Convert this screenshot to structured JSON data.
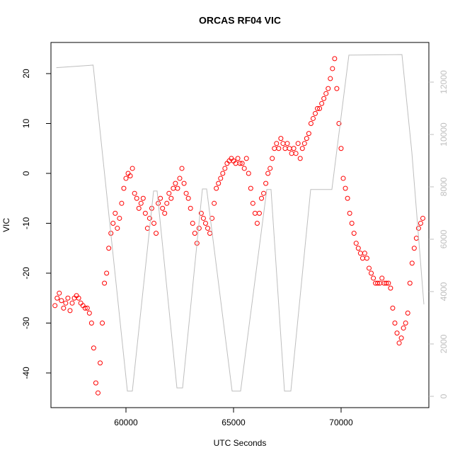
{
  "chart_data": {
    "type": "scatter",
    "title": "ORCAS RF04 VIC",
    "x_label": "UTC Seconds",
    "y_label": "VIC",
    "xlim": [
      56513,
      74080
    ],
    "ylim": [
      -46.95,
      26.24
    ],
    "y2lim": [
      -432,
      13514
    ],
    "xticks": [
      60000,
      65000,
      70000
    ],
    "yticks": [
      -40,
      -30,
      -20,
      -10,
      0,
      10,
      20
    ],
    "y2ticks": [
      0,
      2000,
      4000,
      6000,
      8000,
      10000,
      12000
    ],
    "y2_tick_color": "#bebebe",
    "series": [
      {
        "mark": "points",
        "color": "#ff0000",
        "x": [
          56700,
          56800,
          56900,
          57000,
          57100,
          57200,
          57300,
          57400,
          57500,
          57600,
          57700,
          57800,
          57900,
          58000,
          58100,
          58200,
          58300,
          58400,
          58500,
          58600,
          58700,
          58800,
          58900,
          59000,
          59100,
          59200,
          59300,
          59400,
          59500,
          59600,
          59700,
          59800,
          59900,
          60000,
          60100,
          60200,
          60300,
          60400,
          60500,
          60600,
          60700,
          60800,
          60900,
          61000,
          61100,
          61200,
          61300,
          61400,
          61500,
          61600,
          61700,
          61800,
          61900,
          62000,
          62100,
          62200,
          62300,
          62400,
          62500,
          62600,
          62700,
          62800,
          62900,
          63000,
          63100,
          63200,
          63300,
          63400,
          63500,
          63600,
          63700,
          63800,
          63900,
          64000,
          64100,
          64200,
          64300,
          64400,
          64500,
          64600,
          64700,
          64800,
          64900,
          65000,
          65100,
          65200,
          65300,
          65400,
          65500,
          65600,
          65700,
          65800,
          65900,
          66000,
          66100,
          66200,
          66300,
          66400,
          66500,
          66600,
          66700,
          66800,
          66900,
          67000,
          67100,
          67200,
          67300,
          67400,
          67500,
          67600,
          67700,
          67800,
          67900,
          68000,
          68100,
          68200,
          68300,
          68400,
          68500,
          68600,
          68700,
          68800,
          68900,
          69000,
          69100,
          69200,
          69300,
          69400,
          69500,
          69600,
          69700,
          69800,
          69900,
          70000,
          70100,
          70200,
          70300,
          70400,
          70500,
          70600,
          70700,
          70800,
          70900,
          71000,
          71100,
          71200,
          71300,
          71400,
          71500,
          71600,
          71700,
          71800,
          71900,
          72000,
          72100,
          72200,
          72300,
          72400,
          72500,
          72600,
          72700,
          72800,
          72900,
          73000,
          73100,
          73200,
          73300,
          73400,
          73500,
          73600,
          73700,
          73800
        ],
        "values": [
          -26.5,
          -25,
          -24,
          -25.5,
          -27,
          -26,
          -25,
          -27.5,
          -26,
          -25,
          -24.5,
          -25,
          -26,
          -26.5,
          -27,
          -27,
          -28,
          -30,
          -35,
          -42,
          -44,
          -38,
          -30,
          -22,
          -20,
          -15,
          -12,
          -10,
          -8,
          -11,
          -9,
          -6,
          -3,
          -1,
          0,
          -0.5,
          1,
          -4,
          -5,
          -7,
          -6,
          -5,
          -8,
          -11,
          -9,
          -7,
          -10,
          -12,
          -6,
          -5,
          -7,
          -8,
          -6,
          -4,
          -5,
          -3,
          -2,
          -3,
          -1,
          1,
          -2,
          -4,
          -5,
          -7,
          -10,
          -12,
          -14,
          -11,
          -8,
          -9,
          -10,
          -11,
          -12,
          -9,
          -6,
          -3,
          -2,
          -1,
          0,
          1,
          2,
          2.5,
          3,
          2.5,
          2,
          3,
          2,
          2,
          1,
          3,
          0,
          -3,
          -6,
          -8,
          -10,
          -8,
          -5,
          -4,
          -2,
          0,
          1,
          3,
          5,
          6,
          5,
          7,
          6,
          5,
          6,
          5,
          4,
          5,
          4,
          6,
          3,
          5,
          6,
          7,
          8,
          10,
          11,
          12,
          13,
          13,
          14,
          15,
          16,
          17,
          19,
          21,
          23,
          17,
          10,
          5,
          -1,
          -3,
          -5,
          -8,
          -10,
          -12,
          -14,
          -15,
          -16,
          -17,
          -16,
          -17,
          -19,
          -20,
          -21,
          -22,
          -22,
          -22,
          -21,
          -22,
          -22,
          -22,
          -23,
          -27,
          -30,
          -32,
          -34,
          -33,
          -31,
          -30,
          -28,
          -22,
          -18,
          -15,
          -13,
          -11,
          -10,
          -9
        ]
      },
      {
        "mark": "line",
        "axis": "y2",
        "color": "#bebebe",
        "x": [
          56763,
          58474,
          60066,
          60296,
          61283,
          61447,
          62368,
          62632,
          63553,
          63750,
          64934,
          65329,
          66546,
          66743,
          67368,
          67664,
          68586,
          69572,
          70362,
          72829,
          73289,
          73849
        ],
        "values": [
          12550,
          12650,
          200,
          200,
          7840,
          7840,
          320,
          320,
          7920,
          7920,
          200,
          200,
          7900,
          7900,
          200,
          200,
          7900,
          7900,
          13030,
          13050,
          9320,
          3510
        ]
      }
    ]
  }
}
